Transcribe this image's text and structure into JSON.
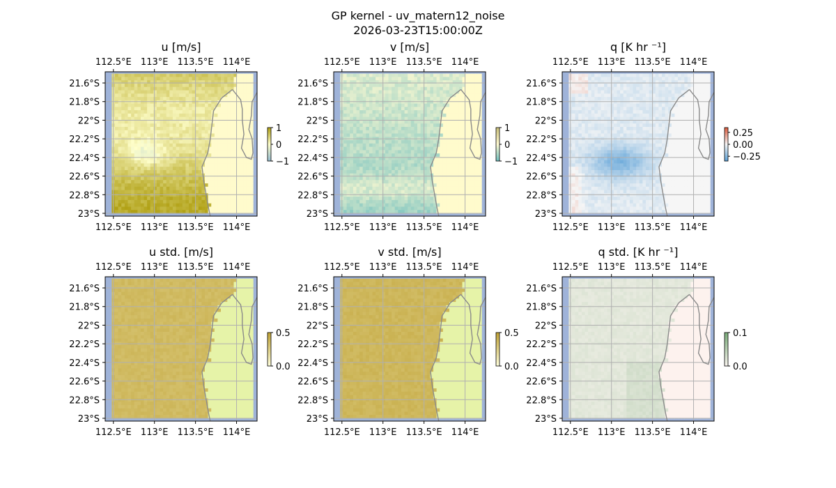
{
  "figure": {
    "title": "GP kernel - uv_matern12_noise",
    "subtitle": "2026-03-23T15:00:00Z"
  },
  "chart_data": {
    "type": "heatmap",
    "x_ticks": [
      "112.5°E",
      "113°E",
      "113.5°E",
      "114°E"
    ],
    "y_ticks": [
      "21.6°S",
      "21.8°S",
      "22°S",
      "22.2°S",
      "22.4°S",
      "22.6°S",
      "22.8°S",
      "23°S"
    ],
    "x_range": [
      112.4,
      114.25
    ],
    "y_range": [
      -23.03,
      -21.48
    ],
    "x_tick_values": [
      112.5,
      113.0,
      113.5,
      114.0
    ],
    "y_tick_values": [
      -21.6,
      -21.8,
      -22.0,
      -22.2,
      -22.4,
      -22.6,
      -22.8,
      -23.0
    ],
    "gridlines": true,
    "panels": [
      {
        "title": "u [m/s]",
        "field": "u",
        "colormap": "olive-diverging",
        "colorbar": {
          "range": [
            -1,
            1
          ],
          "ticks": [
            "1",
            "0",
            "−1"
          ],
          "tick_values": [
            1,
            0,
            -1
          ]
        }
      },
      {
        "title": "v [m/s]",
        "field": "v",
        "colormap": "teal-diverging",
        "colorbar": {
          "range": [
            -1,
            1
          ],
          "ticks": [
            "1",
            "0",
            "−1"
          ],
          "tick_values": [
            1,
            0,
            -1
          ]
        }
      },
      {
        "title": "q [K hr ⁻¹]",
        "field": "q",
        "colormap": "red-blue-diverging",
        "colorbar": {
          "range": [
            -0.35,
            0.35
          ],
          "ticks": [
            "0.25",
            "0.00",
            "−0.25"
          ],
          "tick_values": [
            0.25,
            0.0,
            -0.25
          ]
        }
      },
      {
        "title": "u std. [m/s]",
        "field": "u_std",
        "colormap": "olive-sequential",
        "colorbar": {
          "range": [
            0,
            0.5
          ],
          "ticks": [
            "0.5",
            "0.0"
          ],
          "tick_values": [
            0.5,
            0.0
          ]
        }
      },
      {
        "title": "v std. [m/s]",
        "field": "v_std",
        "colormap": "olive-sequential",
        "colorbar": {
          "range": [
            0,
            0.5
          ],
          "ticks": [
            "0.5",
            "0.0"
          ],
          "tick_values": [
            0.5,
            0.0
          ]
        }
      },
      {
        "title": "q std. [K hr ⁻¹]",
        "field": "q_std",
        "colormap": "green-sequential",
        "colorbar": {
          "range": [
            0,
            0.1
          ],
          "ticks": [
            "0.1",
            "0.0"
          ],
          "tick_values": [
            0.1,
            0.0
          ]
        }
      }
    ]
  },
  "colors": {
    "grid": "#b0b0b0",
    "coast": "#8a8a8a",
    "ocean_edge": "#9fb3d9",
    "land_mean": "#fffbcc",
    "land_std_uv": "#e6f3a8",
    "land_std_q": "#fdf2ee"
  }
}
